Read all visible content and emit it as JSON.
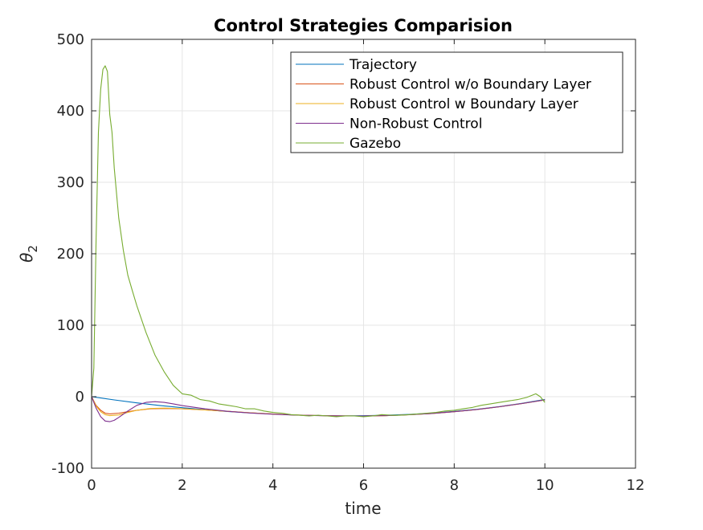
{
  "chart_data": {
    "type": "line",
    "title": "Control Strategies Comparision",
    "xlabel": "time",
    "ylabel_symbol": "θ",
    "ylabel_subscript": "2",
    "xlim": [
      0,
      12
    ],
    "ylim": [
      -100,
      500
    ],
    "xticks": [
      0,
      2,
      4,
      6,
      8,
      10,
      12
    ],
    "yticks": [
      -100,
      0,
      100,
      200,
      300,
      400,
      500
    ],
    "grid": true,
    "legend_position": "top-right",
    "series": [
      {
        "name": "Trajectory",
        "color": "#0072BD",
        "x": [
          0,
          0.5,
          1,
          1.5,
          2,
          2.5,
          3,
          3.5,
          4,
          4.5,
          5,
          5.5,
          6,
          6.5,
          7,
          7.5,
          8,
          8.5,
          9,
          9.5,
          10
        ],
        "y": [
          0,
          -4.5,
          -8.6,
          -12.2,
          -15.4,
          -18.2,
          -20.7,
          -22.7,
          -24.3,
          -25.6,
          -26.4,
          -26.8,
          -26.6,
          -26,
          -24.8,
          -23,
          -20.6,
          -17.6,
          -13.8,
          -9.2,
          -3.8
        ]
      },
      {
        "name": "Robust Control w/o Boundary Layer",
        "color": "#D95319",
        "x": [
          0,
          0.1,
          0.2,
          0.3,
          0.4,
          0.6,
          0.8,
          1,
          1.3,
          1.6,
          2,
          2.5,
          3,
          3.5,
          4,
          4.5,
          5,
          5.5,
          6,
          6.5,
          7,
          7.5,
          8,
          8.5,
          9,
          9.5,
          10
        ],
        "y": [
          0,
          -12,
          -19,
          -23,
          -24,
          -23,
          -21,
          -19,
          -17,
          -16.5,
          -17,
          -18.5,
          -20.5,
          -22.5,
          -24.3,
          -25.6,
          -26.4,
          -26.9,
          -27,
          -26.5,
          -25.3,
          -23.5,
          -21,
          -18,
          -14,
          -9.5,
          -4.5
        ]
      },
      {
        "name": "Robust Control w Boundary Layer",
        "color": "#EDB120",
        "x": [
          0,
          0.1,
          0.2,
          0.3,
          0.4,
          0.6,
          0.8,
          1,
          1.3,
          1.6,
          2,
          2.5,
          3,
          3.5,
          4,
          4.5,
          5,
          5.5,
          6,
          6.5,
          7,
          7.5,
          8,
          8.5,
          9,
          9.5,
          10
        ],
        "y": [
          0,
          -13,
          -21,
          -25,
          -26.5,
          -25.5,
          -22,
          -19,
          -16.5,
          -16,
          -16.8,
          -18.5,
          -20.5,
          -22.5,
          -24.3,
          -25.6,
          -26.4,
          -26.9,
          -27,
          -26.5,
          -25.3,
          -23.5,
          -21,
          -18,
          -14,
          -9.5,
          -4.5
        ]
      },
      {
        "name": "Non-Robust Control",
        "color": "#7E2F8E",
        "x": [
          0,
          0.1,
          0.2,
          0.3,
          0.4,
          0.5,
          0.6,
          0.8,
          1,
          1.2,
          1.4,
          1.6,
          1.8,
          2,
          2.5,
          3,
          3.5,
          4,
          4.5,
          5,
          5.5,
          6,
          6.5,
          7,
          7.5,
          8,
          8.5,
          9,
          9.5,
          10
        ],
        "y": [
          0,
          -16,
          -28,
          -34,
          -35,
          -33,
          -29,
          -20,
          -12,
          -8,
          -7,
          -8,
          -10,
          -12.5,
          -17,
          -20.5,
          -22.8,
          -24.5,
          -25.7,
          -26.5,
          -26.9,
          -27,
          -26.5,
          -25.3,
          -23.5,
          -21,
          -18,
          -14,
          -9.5,
          -4.5
        ]
      },
      {
        "name": "Gazebo",
        "color": "#77AC30",
        "x": [
          0,
          0.05,
          0.1,
          0.15,
          0.2,
          0.25,
          0.3,
          0.35,
          0.4,
          0.45,
          0.5,
          0.6,
          0.7,
          0.8,
          0.9,
          1,
          1.2,
          1.4,
          1.6,
          1.8,
          2,
          2.2,
          2.4,
          2.6,
          2.8,
          3,
          3.2,
          3.4,
          3.6,
          3.8,
          4,
          4.2,
          4.4,
          4.6,
          4.8,
          5,
          5.2,
          5.4,
          5.6,
          5.8,
          6,
          6.2,
          6.4,
          6.6,
          6.8,
          7,
          7.2,
          7.4,
          7.6,
          7.8,
          8,
          8.2,
          8.4,
          8.6,
          8.8,
          9,
          9.2,
          9.4,
          9.6,
          9.8,
          9.9,
          10
        ],
        "y": [
          0,
          40,
          220,
          370,
          430,
          458,
          463,
          455,
          395,
          370,
          320,
          250,
          205,
          170,
          148,
          127,
          90,
          58,
          35,
          16,
          4,
          2,
          -4,
          -6,
          -10,
          -12,
          -14,
          -17,
          -17,
          -20,
          -22,
          -23,
          -25,
          -26,
          -27,
          -26,
          -27,
          -28,
          -27,
          -27,
          -28,
          -27,
          -25,
          -26,
          -26,
          -25,
          -24,
          -23,
          -22,
          -20,
          -19,
          -17,
          -15,
          -12,
          -10,
          -8,
          -6,
          -4,
          -1,
          4,
          0,
          -8
        ]
      }
    ]
  }
}
